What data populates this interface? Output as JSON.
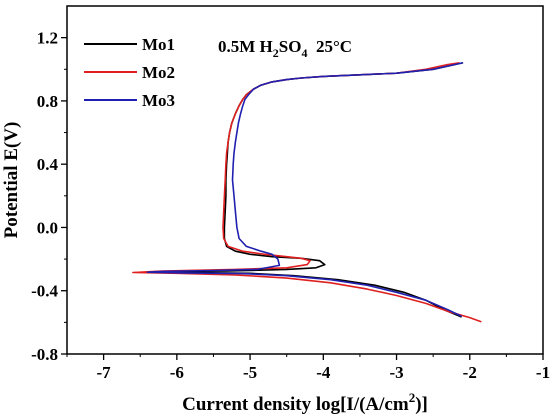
{
  "chart_data": {
    "type": "line",
    "xlabel_main": "Current density log[I/(A/cm",
    "xlabel_sup": "2",
    "xlabel_end": ")]",
    "ylabel": "Potential E(V)",
    "xlim": [
      -7.5,
      -1
    ],
    "ylim": [
      -0.8,
      1.4
    ],
    "xticks": [
      -7,
      -6,
      -5,
      -4,
      -3,
      -2,
      -1
    ],
    "yticks": [
      -0.8,
      -0.4,
      0.0,
      0.4,
      0.8,
      1.2
    ],
    "xtick_labels": [
      "-7",
      "-6",
      "-5",
      "-4",
      "-3",
      "-2",
      "-1"
    ],
    "ytick_labels": [
      "-0.8",
      "-0.4",
      "0.0",
      "0.4",
      "0.8",
      "1.2"
    ],
    "annotation": {
      "part1": "0.5M H",
      "sub1": "2",
      "part2": "SO",
      "sub2": "4",
      "part3": "  25°C"
    },
    "legend_position": "top-left",
    "series": [
      {
        "name": "Mo1",
        "color": "#000000",
        "x": [
          -2.1,
          -2.2,
          -2.5,
          -3.0,
          -3.5,
          -4.0,
          -4.3,
          -4.5,
          -4.7,
          -4.85,
          -4.95,
          -5.05,
          -5.1,
          -5.15,
          -5.2,
          -5.25,
          -5.28,
          -5.3,
          -5.31,
          -5.32,
          -5.33,
          -5.33,
          -5.34,
          -5.35,
          -5.35,
          -5.32,
          -5.2,
          -5.0,
          -4.7,
          -4.3,
          -4.05,
          -3.98,
          -4.1,
          -4.5,
          -5.3,
          -6.3,
          -6.4,
          -5.8,
          -5.0,
          -4.4,
          -3.8,
          -3.3,
          -2.9,
          -2.6,
          -2.35,
          -2.12
        ],
        "y": [
          1.04,
          1.03,
          1.0,
          0.975,
          0.965,
          0.955,
          0.945,
          0.935,
          0.92,
          0.9,
          0.875,
          0.84,
          0.81,
          0.77,
          0.72,
          0.66,
          0.6,
          0.54,
          0.47,
          0.4,
          0.3,
          0.2,
          0.1,
          0.0,
          -0.07,
          -0.12,
          -0.15,
          -0.17,
          -0.185,
          -0.195,
          -0.21,
          -0.235,
          -0.255,
          -0.265,
          -0.275,
          -0.28,
          -0.283,
          -0.285,
          -0.29,
          -0.305,
          -0.33,
          -0.365,
          -0.41,
          -0.46,
          -0.52,
          -0.565
        ]
      },
      {
        "name": "Mo2",
        "color": "#e02020",
        "x": [
          -2.15,
          -2.3,
          -2.6,
          -3.0,
          -3.5,
          -4.0,
          -4.3,
          -4.5,
          -4.7,
          -4.85,
          -4.95,
          -5.05,
          -5.1,
          -5.15,
          -5.2,
          -5.25,
          -5.28,
          -5.3,
          -5.32,
          -5.33,
          -5.34,
          -5.35,
          -5.36,
          -5.37,
          -5.36,
          -5.3,
          -5.1,
          -4.8,
          -4.5,
          -4.3,
          -4.18,
          -4.22,
          -4.5,
          -5.2,
          -6.2,
          -6.6,
          -6.0,
          -5.2,
          -4.5,
          -3.9,
          -3.4,
          -3.0,
          -2.6,
          -2.3,
          -2.0,
          -1.85
        ],
        "y": [
          1.04,
          1.03,
          1.0,
          0.975,
          0.965,
          0.955,
          0.945,
          0.935,
          0.92,
          0.9,
          0.875,
          0.84,
          0.81,
          0.77,
          0.72,
          0.66,
          0.6,
          0.54,
          0.47,
          0.4,
          0.3,
          0.2,
          0.1,
          0.0,
          -0.07,
          -0.12,
          -0.15,
          -0.17,
          -0.185,
          -0.195,
          -0.21,
          -0.235,
          -0.255,
          -0.265,
          -0.275,
          -0.285,
          -0.29,
          -0.3,
          -0.32,
          -0.35,
          -0.39,
          -0.43,
          -0.48,
          -0.53,
          -0.57,
          -0.595
        ]
      },
      {
        "name": "Mo3",
        "color": "#2020b0",
        "x": [
          -2.1,
          -2.2,
          -2.5,
          -3.0,
          -3.5,
          -4.0,
          -4.3,
          -4.5,
          -4.7,
          -4.85,
          -4.95,
          -5.02,
          -5.07,
          -5.1,
          -5.13,
          -5.16,
          -5.18,
          -5.2,
          -5.22,
          -5.23,
          -5.24,
          -5.22,
          -5.2,
          -5.18,
          -5.15,
          -5.05,
          -4.85,
          -4.7,
          -4.62,
          -4.6,
          -4.9,
          -5.5,
          -6.2,
          -6.4,
          -5.9,
          -5.1,
          -4.5,
          -3.9,
          -3.4,
          -3.0,
          -2.6,
          -2.3,
          -2.12
        ],
        "y": [
          1.04,
          1.03,
          1.0,
          0.975,
          0.965,
          0.955,
          0.945,
          0.935,
          0.92,
          0.9,
          0.875,
          0.84,
          0.81,
          0.77,
          0.72,
          0.66,
          0.6,
          0.54,
          0.47,
          0.4,
          0.3,
          0.2,
          0.1,
          0.0,
          -0.07,
          -0.12,
          -0.15,
          -0.17,
          -0.2,
          -0.24,
          -0.265,
          -0.272,
          -0.278,
          -0.283,
          -0.287,
          -0.292,
          -0.305,
          -0.33,
          -0.365,
          -0.41,
          -0.46,
          -0.52,
          -0.56
        ]
      }
    ]
  }
}
